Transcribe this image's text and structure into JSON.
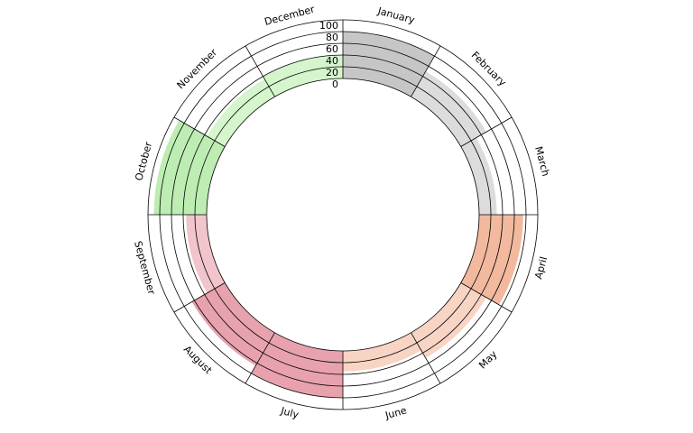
{
  "chart_data": {
    "type": "polar-bar",
    "categories": [
      "January",
      "February",
      "March",
      "April",
      "May",
      "June",
      "July",
      "August",
      "September",
      "October",
      "November",
      "December"
    ],
    "values": [
      80,
      50,
      30,
      75,
      50,
      35,
      80,
      65,
      35,
      90,
      35,
      40
    ],
    "colors": [
      "#c6c6c6",
      "#dcdcdc",
      "#dcdcdc",
      "#f2b99f",
      "#f8d4c4",
      "#f8d4c4",
      "#e8a2ad",
      "#e8a2ad",
      "#f2c4cb",
      "#bdedb3",
      "#d5f5cd",
      "#d5f5cd"
    ],
    "ylim": [
      0,
      100
    ],
    "yticks": [
      0,
      20,
      40,
      60,
      80,
      100
    ],
    "grid": true
  }
}
